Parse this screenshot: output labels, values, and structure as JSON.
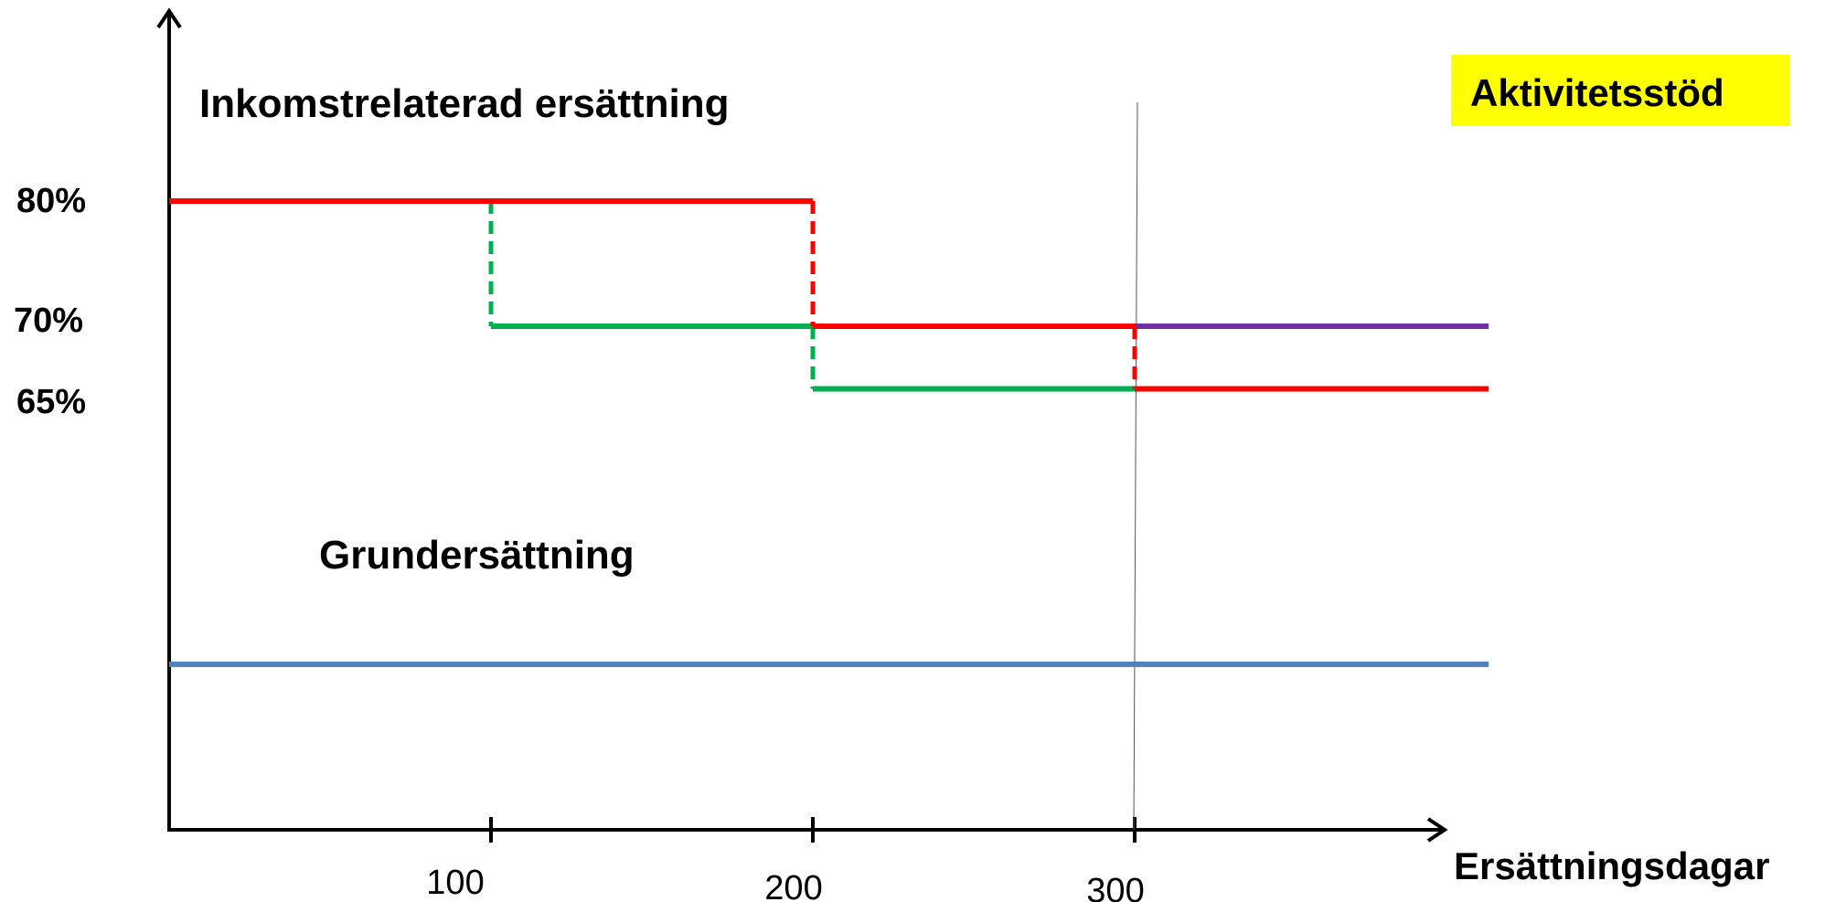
{
  "chart_data": {
    "type": "line",
    "title": "",
    "xlabel": "Ersättningsdagar",
    "ylabel": "",
    "x_ticks": [
      100,
      200,
      300
    ],
    "y_ticks": [
      "80%",
      "70%",
      "65%"
    ],
    "xlim": [
      0,
      410
    ],
    "grid": false,
    "annotations": {
      "income_related": "Inkomstrelaterad ersättning",
      "basic": "Grundersättning",
      "activity_support": "Aktivitetsstöd"
    },
    "series": [
      {
        "color": "#ff0000",
        "points": [
          [
            0,
            80
          ],
          [
            200,
            80
          ],
          [
            200,
            70
          ],
          [
            300,
            70
          ],
          [
            300,
            65
          ],
          [
            410,
            65
          ]
        ]
      },
      {
        "color": "#00b050",
        "points": [
          [
            100,
            80
          ],
          [
            100,
            70
          ],
          [
            200,
            70
          ],
          [
            200,
            65
          ],
          [
            300,
            65
          ]
        ]
      },
      {
        "color": "#7030a0",
        "points": [
          [
            300,
            70
          ],
          [
            410,
            70
          ]
        ]
      },
      {
        "color": "#4f81bd",
        "points": [
          [
            0,
            43
          ],
          [
            410,
            43
          ]
        ]
      }
    ],
    "marker_line_x": 300
  },
  "colors": {
    "axis": "#000000",
    "highlight_box": "#ffff00"
  }
}
